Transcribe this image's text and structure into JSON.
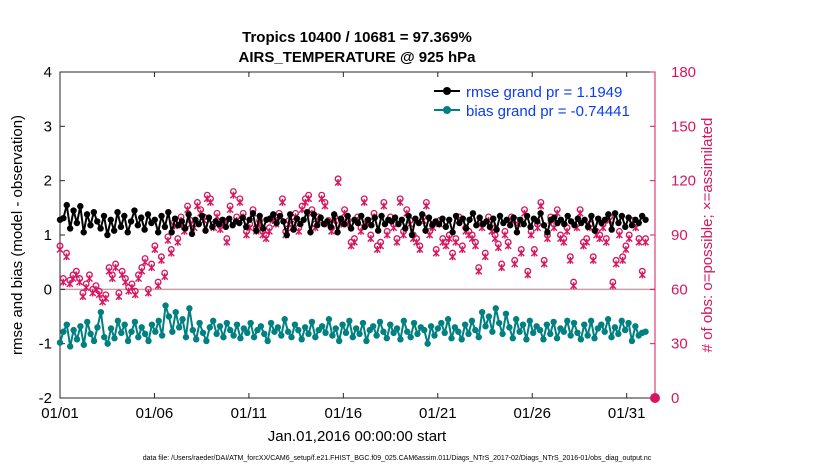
{
  "chart_data": {
    "type": "line",
    "title": "Tropics 10400 / 10681 = 97.369%",
    "subtitle": "AIRS_TEMPERATURE @ 925 hPa",
    "xlabel": "Jan.01,2016 00:00:00 start",
    "ylabel": "rmse and bias (model - observation)",
    "ylabel_right": "# of obs: o=possible; ×=assimilated",
    "xlim": [
      0,
      31.5
    ],
    "ylim": [
      -2,
      4
    ],
    "ylim_right": [
      0,
      180
    ],
    "x_ticks": [
      0,
      5,
      10,
      15,
      20,
      25,
      30
    ],
    "x_tick_labels": [
      "01/01",
      "01/06",
      "01/11",
      "01/16",
      "01/21",
      "01/26",
      "01/31"
    ],
    "y_ticks": [
      -2,
      -1,
      0,
      1,
      2,
      3,
      4
    ],
    "y_tick_labels": [
      "-2",
      "-1",
      "0",
      "1",
      "2",
      "3",
      "4"
    ],
    "y_ticks_right": [
      0,
      30,
      60,
      90,
      120,
      150,
      180
    ],
    "y_tick_labels_right": [
      "0",
      "30",
      "60",
      "90",
      "120",
      "150",
      "180"
    ],
    "legend_position": "top-right",
    "series": [
      {
        "name": "rmse grand pr = 1.1949",
        "color": "#000000",
        "axis": "left",
        "values": [
          1.28,
          1.31,
          1.55,
          1.12,
          1.45,
          1.22,
          1.53,
          1.05,
          1.38,
          1.18,
          1.42,
          1.25,
          1.12,
          1.35,
          1.0,
          1.28,
          1.08,
          1.42,
          1.15,
          1.35,
          1.05,
          1.25,
          1.45,
          1.18,
          1.32,
          1.1,
          1.38,
          1.22,
          1.28,
          1.05,
          1.35,
          1.15,
          1.42,
          1.05,
          1.3,
          1.18,
          1.25,
          1.12,
          1.38,
          1.02,
          1.28,
          1.2,
          1.35,
          1.08,
          1.32,
          1.15,
          1.25,
          1.2,
          1.28,
          1.15,
          1.3,
          1.18,
          1.25,
          1.22,
          1.32,
          1.15,
          1.28,
          1.4,
          1.08,
          1.35,
          1.12,
          1.28,
          1.3,
          1.38,
          1.22,
          1.35,
          1.25,
          1.0,
          1.38,
          1.1,
          1.3,
          1.2,
          1.28,
          1.42,
          1.05,
          1.38,
          1.18,
          1.32,
          1.2,
          1.25,
          1.15,
          1.38,
          1.05,
          1.3,
          1.2,
          1.35,
          1.12,
          1.28,
          1.22,
          1.35,
          1.15,
          1.28,
          1.18,
          1.32,
          1.08,
          1.35,
          1.2,
          1.28,
          1.25,
          1.32,
          1.2,
          1.28,
          1.12,
          1.35,
          1.0,
          1.3,
          1.22,
          1.38,
          1.08,
          1.32,
          1.18,
          1.25,
          1.2,
          1.3,
          1.15,
          1.28,
          1.05,
          1.35,
          1.22,
          1.3,
          1.12,
          1.28,
          1.4,
          1.18,
          1.32,
          1.2,
          1.25,
          1.15,
          1.3,
          1.1,
          1.35,
          1.22,
          1.28,
          1.18,
          1.32,
          1.05,
          1.28,
          1.2,
          1.35,
          1.15,
          1.3,
          1.25,
          1.4,
          1.18,
          1.05,
          1.28,
          1.32,
          1.22,
          1.28,
          1.2,
          1.35,
          1.25,
          1.18,
          1.3,
          1.22,
          1.28,
          1.15,
          1.35,
          1.08,
          1.3,
          1.22,
          1.28,
          1.38,
          1.1,
          1.4,
          1.22,
          1.35,
          1.15,
          1.32,
          1.18,
          1.28,
          1.22,
          1.35,
          1.28
        ]
      },
      {
        "name": "bias grand pr = -0.74441",
        "color": "#008080",
        "axis": "left",
        "values": [
          -0.98,
          -0.78,
          -0.65,
          -1.05,
          -0.75,
          -0.92,
          -0.68,
          -1.02,
          -0.6,
          -0.82,
          -0.95,
          -0.7,
          -0.42,
          -0.88,
          -1.0,
          -0.72,
          -0.9,
          -0.58,
          -0.8,
          -0.65,
          -0.95,
          -0.78,
          -0.6,
          -0.88,
          -0.7,
          -0.82,
          -0.95,
          -0.65,
          -0.78,
          -0.58,
          -0.85,
          -0.3,
          -0.5,
          -0.78,
          -0.42,
          -0.7,
          -0.55,
          -0.88,
          -0.35,
          -0.75,
          -0.92,
          -0.62,
          -0.8,
          -0.95,
          -0.7,
          -0.58,
          -0.82,
          -0.68,
          -0.88,
          -0.62,
          -0.75,
          -0.85,
          -0.65,
          -0.9,
          -0.72,
          -0.8,
          -0.62,
          -0.88,
          -0.75,
          -0.68,
          -0.82,
          -0.95,
          -0.62,
          -0.78,
          -0.7,
          -0.85,
          -0.55,
          -0.78,
          -0.88,
          -0.65,
          -0.75,
          -0.92,
          -0.7,
          -0.82,
          -0.6,
          -0.88,
          -0.75,
          -0.68,
          -0.8,
          -0.55,
          -0.85,
          -0.72,
          -0.95,
          -0.65,
          -0.8,
          -0.58,
          -0.88,
          -0.72,
          -0.82,
          -0.62,
          -0.95,
          -0.75,
          -0.68,
          -0.85,
          -0.6,
          -0.78,
          -0.9,
          -0.65,
          -0.8,
          -0.72,
          -0.92,
          -0.58,
          -0.78,
          -0.88,
          -0.62,
          -0.82,
          -0.7,
          -0.75,
          -1.0,
          -0.68,
          -0.85,
          -0.72,
          -0.62,
          -0.8,
          -0.55,
          -0.9,
          -0.7,
          -0.78,
          -0.92,
          -0.65,
          -0.82,
          -0.58,
          -0.75,
          -0.88,
          -0.42,
          -0.68,
          -0.5,
          -0.78,
          -0.35,
          -0.62,
          -0.82,
          -0.45,
          -0.7,
          -0.9,
          -0.55,
          -0.78,
          -0.65,
          -0.92,
          -0.58,
          -0.8,
          -0.68,
          -0.75,
          -0.92,
          -0.65,
          -0.82,
          -0.6,
          -0.9,
          -0.72,
          -0.78,
          -0.58,
          -0.85,
          -0.62,
          -0.8,
          -0.92,
          -0.65,
          -0.85,
          -0.58,
          -0.9,
          -0.72,
          -0.65,
          -0.78,
          -0.55,
          -0.88,
          -0.7,
          -0.82,
          -0.58,
          -0.75,
          -0.62,
          -0.95,
          -0.68,
          -0.85,
          -0.8,
          -0.78
        ]
      },
      {
        "name": "obs possible",
        "color": "#d6175f",
        "axis": "right",
        "marker": "o",
        "values": [
          84,
          66,
          80,
          65,
          68,
          70,
          66,
          58,
          63,
          68,
          60,
          62,
          59,
          55,
          57,
          72,
          68,
          74,
          58,
          70,
          66,
          61,
          63,
          59,
          68,
          72,
          77,
          60,
          74,
          84,
          64,
          78,
          69,
          89,
          82,
          97,
          88,
          100,
          94,
          106,
          98,
          96,
          108,
          104,
          100,
          112,
          110,
          96,
          102,
          95,
          98,
          88,
          106,
          114,
          100,
          110,
          102,
          92,
          96,
          104,
          94,
          98,
          92,
          90,
          94,
          100,
          98,
          102,
          110,
          92,
          98,
          96,
          102,
          94,
          106,
          110,
          112,
          104,
          96,
          100,
          112,
          108,
          98,
          94,
          100,
          121,
          98,
          104,
          98,
          86,
          88,
          100,
          94,
          110,
          98,
          90,
          102,
          84,
          86,
          108,
          92,
          100,
          96,
          88,
          110,
          92,
          104,
          98,
          90,
          88,
          84,
          100,
          108,
          92,
          96,
          82,
          98,
          88,
          86,
          90,
          80,
          88,
          100,
          84,
          94,
          92,
          90,
          86,
          72,
          96,
          80,
          100,
          94,
          90,
          85,
          74,
          92,
          86,
          100,
          76,
          98,
          82,
          104,
          70,
          92,
          82,
          96,
          108,
          76,
          90,
          100,
          96,
          104,
          90,
          88,
          94,
          78,
          64,
          96,
          104,
          86,
          88,
          96,
          78,
          92,
          90,
          96,
          88,
          100,
          64,
          76,
          92,
          78,
          84,
          90,
          98,
          96,
          88,
          70,
          88
        ]
      },
      {
        "name": "obs assimilated",
        "color": "#d6175f",
        "axis": "right",
        "marker": "x",
        "values": [
          82,
          64,
          78,
          63,
          66,
          68,
          64,
          56,
          61,
          66,
          58,
          60,
          57,
          53,
          55,
          70,
          66,
          72,
          56,
          68,
          64,
          59,
          61,
          57,
          66,
          70,
          75,
          58,
          72,
          82,
          62,
          76,
          67,
          87,
          80,
          95,
          86,
          98,
          92,
          104,
          96,
          94,
          106,
          102,
          98,
          110,
          108,
          94,
          100,
          93,
          96,
          86,
          104,
          112,
          98,
          108,
          100,
          90,
          94,
          102,
          92,
          96,
          90,
          88,
          92,
          98,
          96,
          100,
          108,
          90,
          96,
          94,
          100,
          92,
          104,
          108,
          110,
          102,
          94,
          98,
          110,
          106,
          96,
          92,
          98,
          119,
          96,
          102,
          96,
          84,
          86,
          98,
          92,
          108,
          96,
          88,
          100,
          82,
          84,
          106,
          90,
          98,
          94,
          86,
          108,
          90,
          102,
          96,
          88,
          86,
          82,
          98,
          106,
          90,
          94,
          80,
          96,
          86,
          84,
          88,
          78,
          86,
          98,
          82,
          92,
          90,
          88,
          84,
          70,
          94,
          78,
          98,
          92,
          88,
          83,
          72,
          90,
          84,
          98,
          74,
          96,
          80,
          102,
          68,
          90,
          80,
          94,
          106,
          74,
          88,
          98,
          94,
          102,
          88,
          86,
          92,
          76,
          62,
          94,
          102,
          84,
          86,
          94,
          76,
          90,
          88,
          94,
          86,
          98,
          62,
          74,
          90,
          76,
          82,
          88,
          96,
          94,
          86,
          68,
          86
        ]
      }
    ]
  },
  "footer": {
    "data_file": "data file: /Users/raeder/DAI/ATM_forcXX/CAM6_setup/f.e21.FHIST_BGC.f09_025.CAM6assim.011/Diags_NTrS_2017-02/Diags_NTrS_2016-01/obs_diag_output.nc"
  }
}
